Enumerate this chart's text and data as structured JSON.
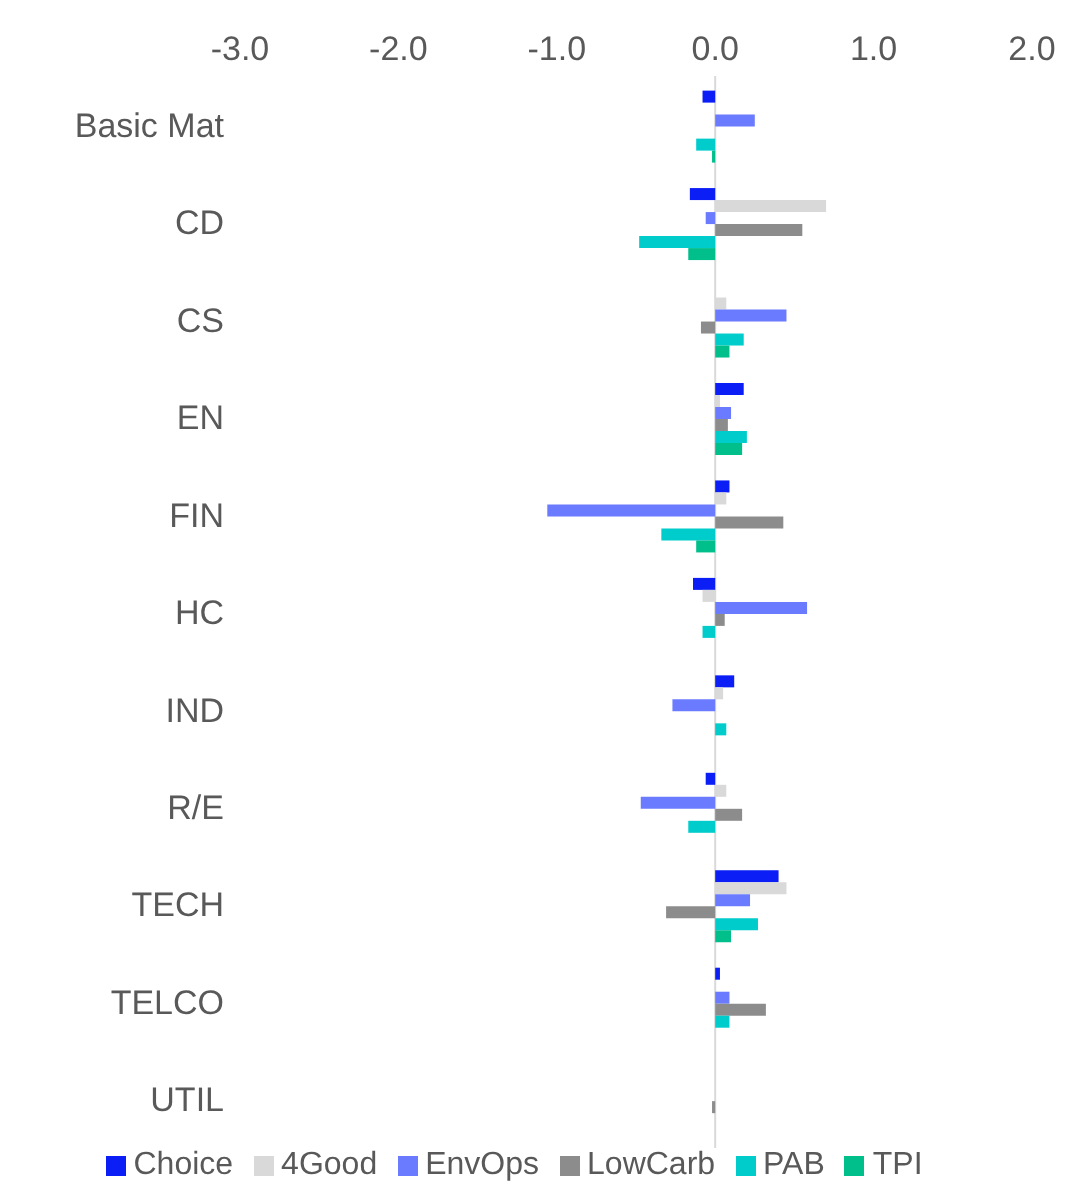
{
  "chart_data": {
    "type": "bar",
    "orientation": "horizontal",
    "categories": [
      "Basic Mat",
      "CD",
      "CS",
      "EN",
      "FIN",
      "HC",
      "IND",
      "R/E",
      "TECH",
      "TELCO",
      "UTIL"
    ],
    "series": [
      {
        "name": "Choice",
        "color": "#0a1ef5",
        "values": [
          -0.08,
          -0.16,
          0,
          0.18,
          0.09,
          -0.14,
          0.12,
          -0.06,
          0.4,
          0.03,
          0
        ]
      },
      {
        "name": "4Good",
        "color": "#d9d9d9",
        "values": [
          0,
          0.7,
          0.07,
          0.03,
          0.07,
          -0.08,
          0.05,
          0.07,
          0.45,
          0,
          0
        ]
      },
      {
        "name": "EnvOps",
        "color": "#6b7bff",
        "values": [
          0.25,
          -0.06,
          0.45,
          0.1,
          -1.06,
          0.58,
          -0.27,
          -0.47,
          0.22,
          0.09,
          0
        ]
      },
      {
        "name": "LowCarb",
        "color": "#8c8c8c",
        "values": [
          0,
          0.55,
          -0.09,
          0.08,
          0.43,
          0.06,
          0,
          0.17,
          -0.31,
          0.32,
          -0.02
        ]
      },
      {
        "name": "PAB",
        "color": "#00cccc",
        "values": [
          -0.12,
          -0.48,
          0.18,
          0.2,
          -0.34,
          -0.08,
          0.07,
          -0.17,
          0.27,
          0.09,
          0
        ]
      },
      {
        "name": "TPI",
        "color": "#00bf8a",
        "values": [
          -0.02,
          -0.17,
          0.09,
          0.17,
          -0.12,
          0,
          0,
          0,
          0.1,
          0,
          0
        ]
      }
    ],
    "xlim": [
      -3,
      2
    ],
    "xticks": [
      {
        "value": -3,
        "label": "-3.0"
      },
      {
        "value": -2,
        "label": "-2.0"
      },
      {
        "value": -1,
        "label": "-1.0"
      },
      {
        "value": 0,
        "label": "0.0"
      },
      {
        "value": 1,
        "label": "1.0"
      },
      {
        "value": 2,
        "label": "2.0"
      }
    ],
    "ref_lines": [
      {
        "axis": "x",
        "value": 0,
        "color": "#d9d9d9"
      }
    ],
    "grid": false,
    "legend": "bottom"
  }
}
